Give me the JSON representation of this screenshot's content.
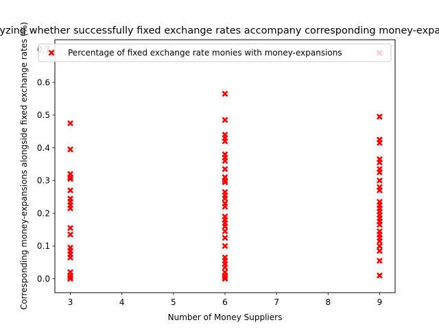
{
  "chart_data": {
    "type": "scatter",
    "title": "Analyzing whether successfully fixed exchange rates accompany corresponding money-expansions",
    "xlabel": "Number of Money Suppliers",
    "ylabel": "Corresponding money-expansions alongside fixed exchange rates (%)",
    "xlim": [
      2.7,
      9.3
    ],
    "ylim": [
      -0.0425,
      0.73
    ],
    "x_ticks": [
      3,
      4,
      5,
      6,
      7,
      8,
      9
    ],
    "y_ticks": [
      0.0,
      0.1,
      0.2,
      0.3,
      0.4,
      0.5,
      0.6,
      0.7
    ],
    "x_tick_labels": [
      "3",
      "4",
      "5",
      "6",
      "7",
      "8",
      "9"
    ],
    "y_tick_labels": [
      "0.0",
      "0.1",
      "0.2",
      "0.3",
      "0.4",
      "0.5",
      "0.6",
      "0.7"
    ],
    "legend_position": "top-right",
    "marker": "X",
    "color": "#ff0000",
    "series": [
      {
        "name": "Percentage of fixed exchange rate monies with money-expansions",
        "points": [
          [
            3,
            0.475
          ],
          [
            3,
            0.395
          ],
          [
            3,
            0.32
          ],
          [
            3,
            0.31
          ],
          [
            3,
            0.305
          ],
          [
            3,
            0.27
          ],
          [
            3,
            0.245
          ],
          [
            3,
            0.235
          ],
          [
            3,
            0.225
          ],
          [
            3,
            0.215
          ],
          [
            3,
            0.155
          ],
          [
            3,
            0.135
          ],
          [
            3,
            0.095
          ],
          [
            3,
            0.085
          ],
          [
            3,
            0.075
          ],
          [
            3,
            0.065
          ],
          [
            3,
            0.02
          ],
          [
            3,
            0.01
          ],
          [
            3,
            0.005
          ],
          [
            3,
            0.0
          ],
          [
            6,
            0.565
          ],
          [
            6,
            0.485
          ],
          [
            6,
            0.44
          ],
          [
            6,
            0.43
          ],
          [
            6,
            0.42
          ],
          [
            6,
            0.38
          ],
          [
            6,
            0.37
          ],
          [
            6,
            0.36
          ],
          [
            6,
            0.335
          ],
          [
            6,
            0.31
          ],
          [
            6,
            0.3
          ],
          [
            6,
            0.295
          ],
          [
            6,
            0.265
          ],
          [
            6,
            0.255
          ],
          [
            6,
            0.245
          ],
          [
            6,
            0.23
          ],
          [
            6,
            0.22
          ],
          [
            6,
            0.19
          ],
          [
            6,
            0.18
          ],
          [
            6,
            0.17
          ],
          [
            6,
            0.16
          ],
          [
            6,
            0.145
          ],
          [
            6,
            0.125
          ],
          [
            6,
            0.1
          ],
          [
            6,
            0.065
          ],
          [
            6,
            0.055
          ],
          [
            6,
            0.045
          ],
          [
            6,
            0.035
          ],
          [
            6,
            0.02
          ],
          [
            6,
            0.01
          ],
          [
            6,
            0.005
          ],
          [
            6,
            0.0
          ],
          [
            9,
            0.69
          ],
          [
            9,
            0.495
          ],
          [
            9,
            0.425
          ],
          [
            9,
            0.415
          ],
          [
            9,
            0.365
          ],
          [
            9,
            0.355
          ],
          [
            9,
            0.335
          ],
          [
            9,
            0.325
          ],
          [
            9,
            0.3
          ],
          [
            9,
            0.28
          ],
          [
            9,
            0.27
          ],
          [
            9,
            0.235
          ],
          [
            9,
            0.225
          ],
          [
            9,
            0.215
          ],
          [
            9,
            0.205
          ],
          [
            9,
            0.195
          ],
          [
            9,
            0.185
          ],
          [
            9,
            0.175
          ],
          [
            9,
            0.165
          ],
          [
            9,
            0.145
          ],
          [
            9,
            0.135
          ],
          [
            9,
            0.125
          ],
          [
            9,
            0.115
          ],
          [
            9,
            0.1
          ],
          [
            9,
            0.085
          ],
          [
            9,
            0.055
          ],
          [
            9,
            0.01
          ]
        ]
      }
    ]
  }
}
